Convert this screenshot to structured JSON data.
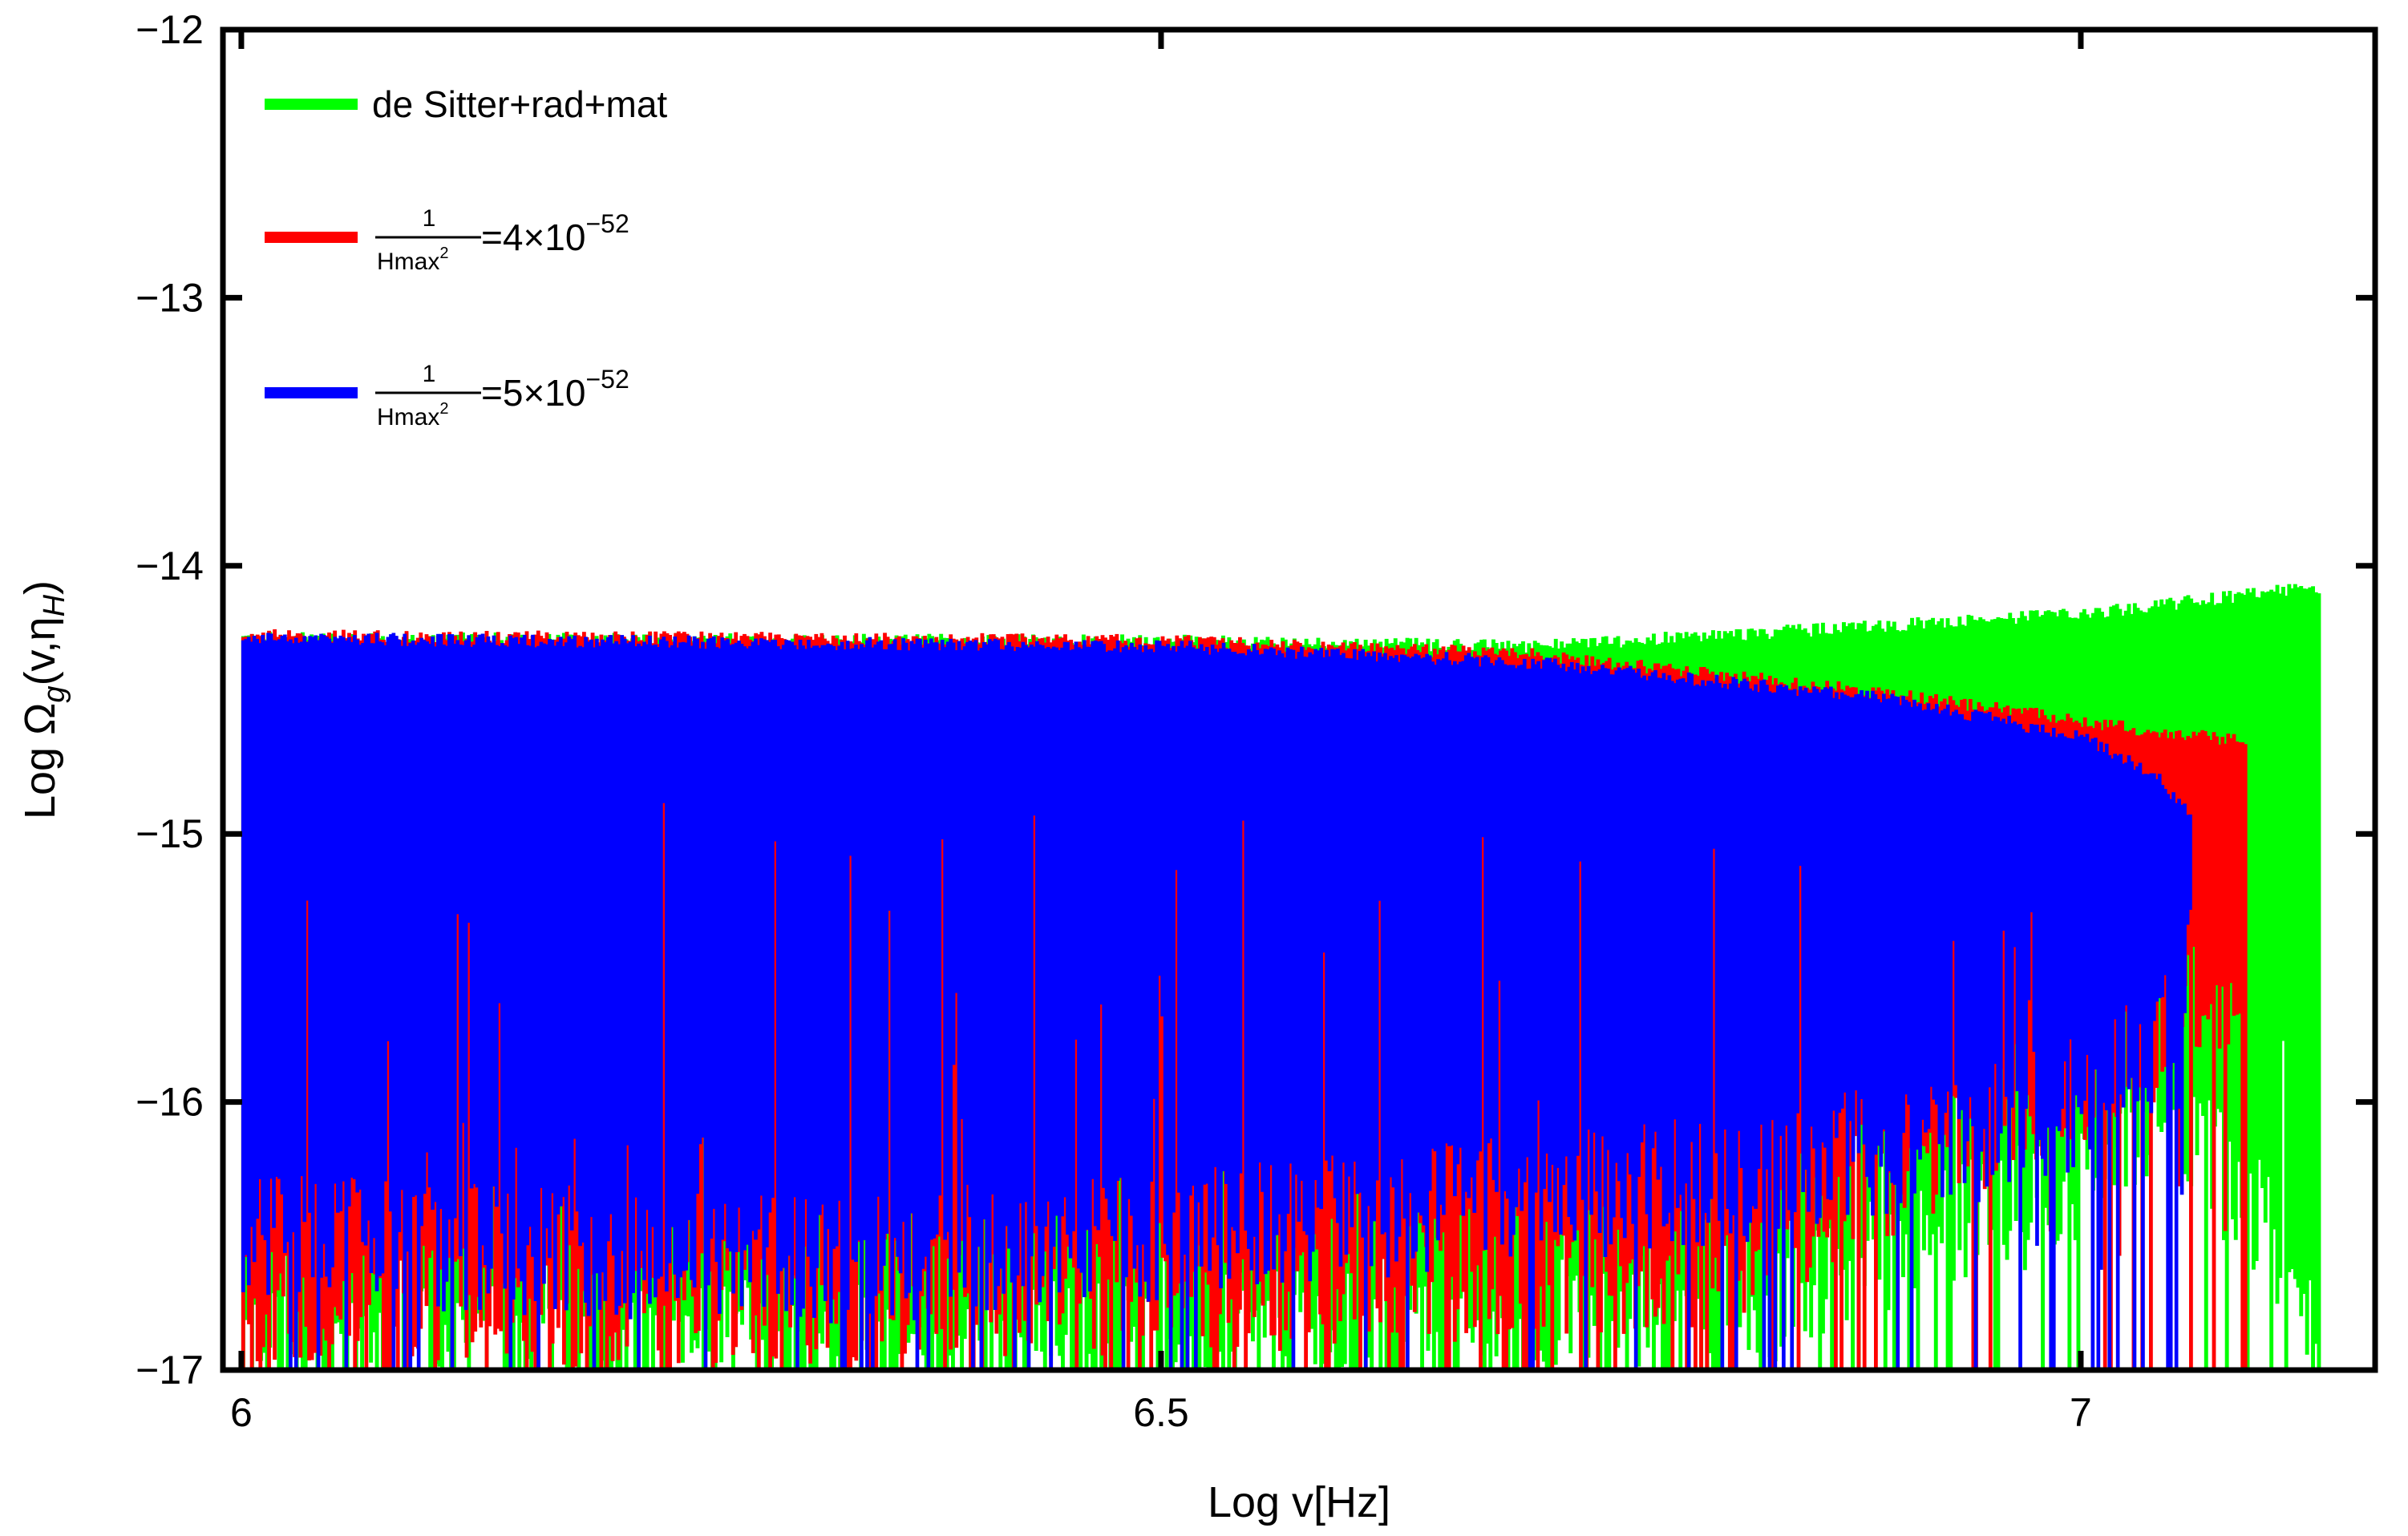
{
  "chart_data": {
    "type": "area",
    "title": "",
    "xlabel": "Log v[Hz]",
    "ylabel": {
      "pre": "Log Ω",
      "sub1": "g",
      "mid": "(v,η",
      "sub2": "H",
      "post": ")"
    },
    "xlim": [
      5.99,
      7.16
    ],
    "ylim": [
      -17,
      -12
    ],
    "xticks": [
      {
        "value": 6,
        "label": "6"
      },
      {
        "value": 6.5,
        "label": "6.5"
      },
      {
        "value": 7,
        "label": "7"
      }
    ],
    "yticks": [
      {
        "value": -12,
        "label": "−12"
      },
      {
        "value": -13,
        "label": "−13"
      },
      {
        "value": -14,
        "label": "−14"
      },
      {
        "value": -15,
        "label": "−15"
      },
      {
        "value": -16,
        "label": "−16"
      },
      {
        "value": -17,
        "label": "−17"
      }
    ],
    "legend_position": "top-left",
    "series": [
      {
        "name": "de Sitter+rad+mat",
        "color": "#00ff00",
        "x_range": [
          6.0,
          7.13
        ],
        "upper": {
          "x": [
            6.0,
            6.5,
            6.7,
            6.9,
            7.0,
            7.05,
            7.1,
            7.13
          ],
          "y": [
            -14.27,
            -14.28,
            -14.3,
            -14.22,
            -14.18,
            -14.14,
            -14.1,
            -14.08
          ]
        },
        "lower": {
          "x": [
            6.0,
            6.5,
            6.8,
            7.0,
            7.05,
            7.1,
            7.13
          ],
          "y": [
            -17.0,
            -17.0,
            -16.9,
            -16.4,
            -16.1,
            -16.6,
            -17.0
          ]
        }
      },
      {
        "name_parts": {
          "num": "1",
          "den": "Hmax",
          "den_sup": "2",
          "rhs": "=4×10",
          "rhs_sup": "−52"
        },
        "color": "#ff0000",
        "x_range": [
          6.0,
          7.09
        ],
        "upper": {
          "x": [
            6.0,
            6.5,
            6.7,
            6.9,
            7.0,
            7.05,
            7.09
          ],
          "y": [
            -14.26,
            -14.28,
            -14.33,
            -14.48,
            -14.58,
            -14.63,
            -14.65
          ]
        },
        "lower": {
          "x": [
            6.0,
            6.5,
            6.8,
            7.0,
            7.05,
            7.09
          ],
          "y": [
            -16.9,
            -16.8,
            -16.7,
            -16.0,
            -15.75,
            -15.8
          ]
        }
      },
      {
        "name_parts": {
          "num": "1",
          "den": "Hmax",
          "den_sup": "2",
          "rhs": "=5×10",
          "rhs_sup": "−52"
        },
        "color": "#0000ff",
        "x_range": [
          6.0,
          7.06
        ],
        "upper": {
          "x": [
            6.0,
            6.5,
            6.7,
            6.9,
            7.0,
            7.04,
            7.06
          ],
          "y": [
            -14.27,
            -14.3,
            -14.36,
            -14.5,
            -14.64,
            -14.78,
            -14.95
          ]
        },
        "lower": {
          "x": [
            6.0,
            6.3,
            6.5,
            6.8,
            6.95,
            7.0,
            7.04,
            7.06
          ],
          "y": [
            -16.6,
            -16.7,
            -16.6,
            -16.4,
            -16.2,
            -16.1,
            -15.9,
            -15.5
          ]
        }
      }
    ]
  }
}
